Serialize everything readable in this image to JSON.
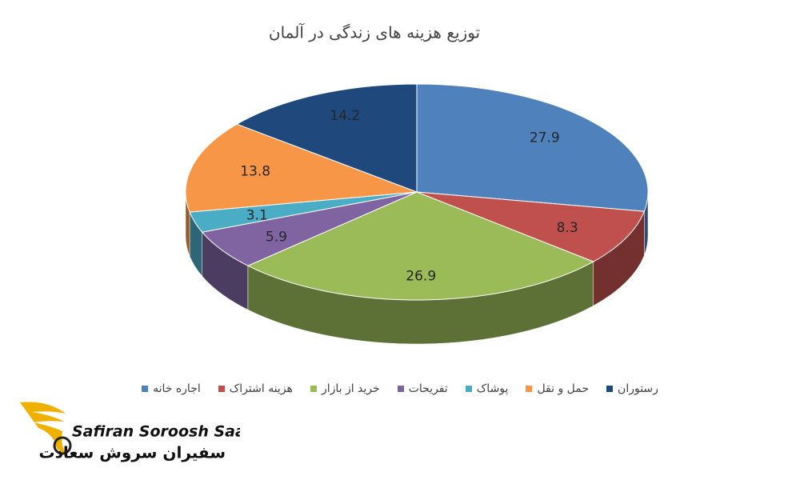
{
  "chart_data": {
    "type": "pie3d",
    "title": "توزیع هزینه های زندگی در آلمان",
    "categories": [
      "اجاره خانه",
      "هزینه اشتراک",
      "خرید از بازار",
      "تفریحات",
      "پوشاک",
      "حمل و نقل",
      "رستوران"
    ],
    "values": [
      27.9,
      8.3,
      26.9,
      5.9,
      3.1,
      13.8,
      14.2
    ],
    "colors": [
      "#4f81bd",
      "#c0504d",
      "#9bbb59",
      "#8064a2",
      "#4bacc6",
      "#f79646",
      "#1f497d"
    ],
    "legend": "bottom"
  },
  "logo": {
    "name_en": "Safiran Soroosh Saadat",
    "name_fa": "سفیران سروش سعادت"
  }
}
